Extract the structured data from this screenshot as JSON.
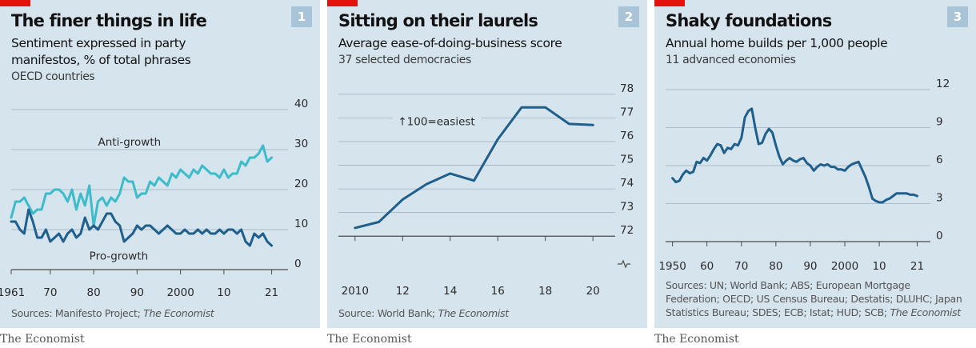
{
  "brand": "The Economist",
  "colors": {
    "background": "#d6e4ee",
    "accent_red": "#e3120b",
    "dark_blue": "#1f5f8b",
    "light_cyan": "#3ebbc9",
    "grid": "#9fb0bd",
    "badge": "#a8c4d6"
  },
  "panels": [
    {
      "number": "1",
      "title": "The finer things in life",
      "subtitle": "Sentiment expressed in party manifestos, % of total phrases",
      "note": "OECD countries",
      "source_prefix": "Sources: Manifesto Project; ",
      "source_italic": "The Economist"
    },
    {
      "number": "2",
      "title": "Sitting on their laurels",
      "subtitle": "Average ease-of-doing-business score",
      "note": "37 selected democracies",
      "source_prefix": "Source: World Bank; ",
      "source_italic": "The Economist"
    },
    {
      "number": "3",
      "title": "Shaky foundations",
      "subtitle": "Annual home builds per 1,000 people",
      "note": "11 advanced economies",
      "source_prefix": "Sources: UN; World Bank; ABS; European Mortgage Federation; OECD; US Census Bureau; Destatis; DLUHC; Japan Statistics Bureau; SDES; ECB; Istat; HUD; SCB; ",
      "source_italic": "The Economist"
    }
  ],
  "chart_data": [
    {
      "type": "line",
      "xlim": [
        1961,
        2022
      ],
      "ylim": [
        0,
        40
      ],
      "y_ticks": [
        0,
        10,
        20,
        30,
        40
      ],
      "x_ticks": [
        1961,
        1970,
        1980,
        1990,
        2000,
        2010,
        2021
      ],
      "x_tick_labels": [
        "1961",
        "70",
        "80",
        "90",
        "2000",
        "10",
        "21"
      ],
      "y_axis_side": "right",
      "grid": true,
      "series": [
        {
          "name": "Anti-growth",
          "color": "#3ebbc9",
          "x": [
            1961,
            1962,
            1963,
            1964,
            1965,
            1966,
            1967,
            1968,
            1969,
            1970,
            1971,
            1972,
            1973,
            1974,
            1975,
            1976,
            1977,
            1978,
            1979,
            1980,
            1981,
            1982,
            1983,
            1984,
            1985,
            1986,
            1987,
            1988,
            1989,
            1990,
            1991,
            1992,
            1993,
            1994,
            1995,
            1996,
            1997,
            1998,
            1999,
            2000,
            2001,
            2002,
            2003,
            2004,
            2005,
            2006,
            2007,
            2008,
            2009,
            2010,
            2011,
            2012,
            2013,
            2014,
            2015,
            2016,
            2017,
            2018,
            2019,
            2020,
            2021
          ],
          "y": [
            13,
            17,
            17,
            18,
            16,
            14,
            15,
            15,
            19,
            19,
            20,
            20,
            19,
            17,
            20,
            15,
            19,
            16,
            21,
            11,
            17,
            18,
            16,
            18,
            17,
            19,
            23,
            22,
            22,
            18,
            19,
            19,
            22,
            21,
            23,
            22,
            21,
            24,
            23,
            25,
            24,
            23,
            25,
            24,
            26,
            25,
            24,
            24,
            23,
            25,
            23,
            24,
            24,
            27,
            26,
            28,
            28,
            29,
            31,
            27,
            28
          ]
        },
        {
          "name": "Pro-growth",
          "color": "#1f5f8b",
          "x": [
            1961,
            1962,
            1963,
            1964,
            1965,
            1966,
            1967,
            1968,
            1969,
            1970,
            1971,
            1972,
            1973,
            1974,
            1975,
            1976,
            1977,
            1978,
            1979,
            1980,
            1981,
            1982,
            1983,
            1984,
            1985,
            1986,
            1987,
            1988,
            1989,
            1990,
            1991,
            1992,
            1993,
            1994,
            1995,
            1996,
            1997,
            1998,
            1999,
            2000,
            2001,
            2002,
            2003,
            2004,
            2005,
            2006,
            2007,
            2008,
            2009,
            2010,
            2011,
            2012,
            2013,
            2014,
            2015,
            2016,
            2017,
            2018,
            2019,
            2020,
            2021
          ],
          "y": [
            12,
            12,
            10,
            9,
            15,
            12,
            8,
            8,
            10,
            7,
            8,
            9,
            7,
            9,
            10,
            8,
            9,
            13,
            10,
            11,
            10,
            12,
            14,
            14,
            12,
            11,
            7,
            8,
            9,
            11,
            10,
            11,
            11,
            10,
            9,
            10,
            11,
            10,
            9,
            9,
            10,
            9,
            9,
            10,
            9,
            10,
            9,
            9,
            10,
            9,
            10,
            10,
            9,
            10,
            7,
            6,
            9,
            8,
            9,
            7,
            6
          ]
        }
      ],
      "annotations": [
        {
          "text": "Anti-growth",
          "x": 1981,
          "y": 31
        },
        {
          "text": "Pro-growth",
          "x": 1979,
          "y": 2.5
        }
      ]
    },
    {
      "type": "line",
      "xlim": [
        2009.3,
        2020.6
      ],
      "ylim": [
        71.5,
        78.2
      ],
      "y_ticks": [
        72,
        73,
        74,
        75,
        76,
        77,
        78
      ],
      "x_ticks": [
        2010,
        2012,
        2014,
        2016,
        2018,
        2020
      ],
      "x_tick_labels": [
        "2010",
        "12",
        "14",
        "16",
        "18",
        "20"
      ],
      "y_axis_side": "right",
      "axis_break": true,
      "grid": true,
      "series": [
        {
          "name": "",
          "color": "#1f5f8b",
          "x": [
            2010,
            2011,
            2012,
            2013,
            2014,
            2015,
            2016,
            2017,
            2018,
            2019,
            2020
          ],
          "y": [
            72.35,
            72.6,
            73.55,
            74.2,
            74.65,
            74.35,
            76.1,
            77.45,
            77.45,
            76.75,
            76.7
          ]
        }
      ],
      "annotations": [
        {
          "text": "↑100=easiest",
          "x": 2011.8,
          "y": 76.7
        }
      ]
    },
    {
      "type": "line",
      "xlim": [
        1948,
        2026
      ],
      "ylim": [
        0,
        12
      ],
      "y_ticks": [
        0,
        3,
        6,
        9,
        12
      ],
      "x_ticks": [
        1950,
        1960,
        1970,
        1980,
        1990,
        2000,
        2010,
        2021
      ],
      "x_tick_labels": [
        "1950",
        "60",
        "70",
        "80",
        "90",
        "2000",
        "10",
        "21"
      ],
      "y_axis_side": "right",
      "grid": true,
      "series": [
        {
          "name": "",
          "color": "#1f5f8b",
          "x": [
            1950,
            1951,
            1952,
            1953,
            1954,
            1955,
            1956,
            1957,
            1958,
            1959,
            1960,
            1961,
            1962,
            1963,
            1964,
            1965,
            1966,
            1967,
            1968,
            1969,
            1970,
            1971,
            1972,
            1973,
            1974,
            1975,
            1976,
            1977,
            1978,
            1979,
            1980,
            1981,
            1982,
            1983,
            1984,
            1985,
            1986,
            1987,
            1988,
            1989,
            1990,
            1991,
            1992,
            1993,
            1994,
            1995,
            1996,
            1997,
            1998,
            1999,
            2000,
            2001,
            2002,
            2003,
            2004,
            2005,
            2006,
            2007,
            2008,
            2009,
            2010,
            2011,
            2012,
            2013,
            2014,
            2015,
            2016,
            2017,
            2018,
            2019,
            2020,
            2021
          ],
          "y": [
            5.0,
            4.7,
            4.8,
            5.3,
            5.6,
            5.4,
            5.5,
            6.3,
            6.2,
            6.6,
            6.4,
            6.8,
            7.3,
            7.7,
            7.6,
            7.0,
            7.4,
            7.3,
            7.7,
            7.6,
            8.2,
            9.8,
            10.3,
            10.5,
            9.0,
            7.7,
            7.8,
            8.5,
            8.9,
            8.6,
            7.6,
            6.7,
            6.1,
            6.4,
            6.6,
            6.4,
            6.3,
            6.5,
            6.6,
            6.2,
            6.0,
            5.6,
            5.9,
            6.1,
            6.0,
            6.1,
            5.9,
            5.9,
            5.7,
            5.7,
            5.6,
            5.9,
            6.1,
            6.2,
            6.3,
            5.7,
            5.1,
            4.3,
            3.4,
            3.2,
            3.1,
            3.1,
            3.3,
            3.4,
            3.6,
            3.8,
            3.8,
            3.8,
            3.8,
            3.7,
            3.7,
            3.6
          ]
        }
      ]
    }
  ]
}
